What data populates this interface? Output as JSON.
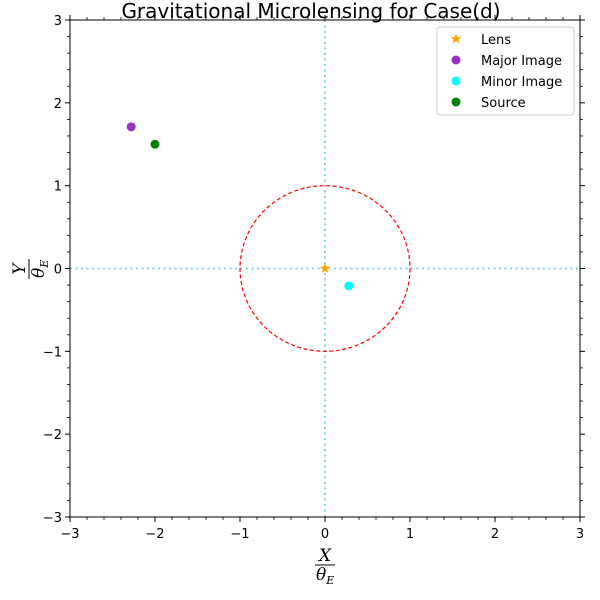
{
  "chart_data": {
    "type": "scatter",
    "title": "Gravitational Microlensing for Case(d)",
    "xlabel": {
      "num": "X",
      "den": "θ",
      "sub": "E"
    },
    "ylabel": {
      "num": "Y",
      "den": "θ",
      "sub": "E"
    },
    "xlim": [
      -3,
      3
    ],
    "ylim": [
      -3,
      3
    ],
    "xticks": [
      -3,
      -2,
      -1,
      0,
      1,
      2,
      3
    ],
    "yticks": [
      -3,
      -2,
      -1,
      0,
      1,
      2,
      3
    ],
    "xtick_labels": [
      "−3",
      "−2",
      "−1",
      "0",
      "1",
      "2",
      "3"
    ],
    "ytick_labels": [
      "−3",
      "−2",
      "−1",
      "0",
      "1",
      "2",
      "3"
    ],
    "minor_tick_step": 0.2,
    "einstein_ring": {
      "center": [
        0,
        0
      ],
      "radius": 1,
      "color": "#ff0000",
      "style": "dashed"
    },
    "reference_lines": {
      "x": 0,
      "y": 0,
      "color": "#87ceeb",
      "style": "dotted"
    },
    "series": [
      {
        "name": "Lens",
        "marker": "star",
        "color": "#ffa500",
        "x": 0,
        "y": 0
      },
      {
        "name": "Major Image",
        "marker": "circle",
        "color": "#9932cc",
        "x": -2.28,
        "y": 1.71
      },
      {
        "name": "Minor Image",
        "marker": "circle",
        "color": "#00ffff",
        "x": 0.28,
        "y": -0.21
      },
      {
        "name": "Source",
        "marker": "circle",
        "color": "#008000",
        "x": -2.0,
        "y": 1.5
      }
    ],
    "legend": {
      "position": "top-right"
    }
  }
}
